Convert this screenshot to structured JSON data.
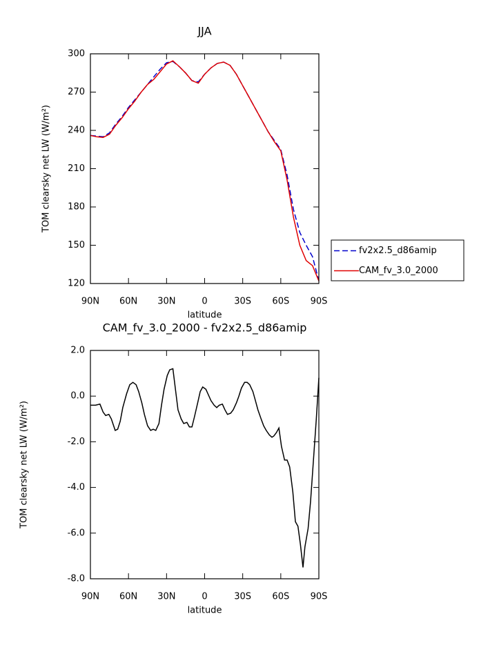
{
  "chart_data": [
    {
      "type": "line",
      "title": "JJA",
      "xlabel": "latitude",
      "ylabel": "TOM clearsky net LW (W/m²)",
      "x": [
        90,
        85,
        80,
        75,
        70,
        65,
        60,
        55,
        50,
        45,
        40,
        35,
        30,
        25,
        20,
        15,
        10,
        5,
        0,
        -5,
        -10,
        -15,
        -20,
        -25,
        -30,
        -35,
        -40,
        -45,
        -50,
        -55,
        -60,
        -65,
        -70,
        -75,
        -80,
        -85,
        -90
      ],
      "series": [
        {
          "name": "fv2x2.5_d86amip",
          "color": "#0000cc",
          "dash": true,
          "values": [
            236,
            235.5,
            235,
            238,
            245,
            251,
            258,
            264,
            270,
            276,
            282,
            288,
            293,
            294,
            290,
            285,
            279,
            278,
            284,
            289,
            292.5,
            293.5,
            291,
            284,
            275,
            266,
            257,
            248,
            239,
            232,
            225,
            205,
            178,
            160,
            150,
            141,
            122
          ]
        },
        {
          "name": "CAM_fv_3.0_2000",
          "color": "#e00000",
          "dash": false,
          "values": [
            236,
            235,
            234.5,
            237,
            244,
            250,
            257,
            263,
            270,
            276,
            280,
            286,
            292,
            294.5,
            290,
            285,
            279,
            277,
            284,
            289,
            292.5,
            293.5,
            291,
            284,
            275,
            266,
            257,
            248,
            239,
            231,
            224,
            201,
            172,
            150,
            138,
            134,
            122
          ]
        }
      ],
      "xlim": [
        90,
        -90
      ],
      "ylim": [
        120,
        300
      ],
      "xticks": [
        {
          "value": 90,
          "label": "90N"
        },
        {
          "value": 60,
          "label": "60N"
        },
        {
          "value": 30,
          "label": "30N"
        },
        0,
        {
          "value": -30,
          "label": "30S"
        },
        {
          "value": -60,
          "label": "60S"
        },
        {
          "value": -90,
          "label": "90S"
        }
      ],
      "yticks": [
        120,
        150,
        180,
        210,
        240,
        270,
        300
      ],
      "legend": "right"
    },
    {
      "type": "line",
      "title": "CAM_fv_3.0_2000 - fv2x2.5_d86amip",
      "xlabel": "latitude",
      "ylabel": "TOM clearsky net LW (W/m²)",
      "color": "#000000",
      "x": [
        90,
        86,
        82.5,
        80,
        78,
        75.5,
        73.5,
        70.5,
        68.5,
        66.5,
        64.5,
        61.5,
        59,
        56.5,
        54,
        52,
        49.5,
        47.5,
        45,
        42.5,
        40.5,
        38.5,
        36,
        34,
        32,
        29.5,
        27.5,
        25,
        23,
        21,
        18.5,
        16.5,
        14,
        12,
        10,
        8,
        5.5,
        3.5,
        1.5,
        -1,
        -3,
        -5,
        -7.5,
        -9.5,
        -11.5,
        -14,
        -16,
        -18,
        -20.5,
        -22.5,
        -25,
        -27,
        -29,
        -31.5,
        -33.5,
        -35.5,
        -38,
        -40,
        -42,
        -44.5,
        -46.5,
        -48.5,
        -51,
        -53,
        -54.5,
        -56.5,
        -58.5,
        -60.5,
        -63,
        -65,
        -67,
        -69.5,
        -71.5,
        -73.5,
        -75.5,
        -77.5,
        -79,
        -81.5,
        -83.5,
        -85.5,
        -88,
        -90
      ],
      "values": [
        -0.4,
        -0.4,
        -0.35,
        -0.7,
        -0.85,
        -0.8,
        -1.0,
        -1.5,
        -1.45,
        -1.1,
        -0.5,
        0.1,
        0.5,
        0.6,
        0.5,
        0.2,
        -0.3,
        -0.8,
        -1.3,
        -1.5,
        -1.45,
        -1.5,
        -1.2,
        -0.4,
        0.3,
        0.9,
        1.15,
        1.2,
        0.3,
        -0.6,
        -1.0,
        -1.2,
        -1.15,
        -1.35,
        -1.35,
        -0.9,
        -0.3,
        0.2,
        0.4,
        0.3,
        0.05,
        -0.2,
        -0.4,
        -0.5,
        -0.4,
        -0.35,
        -0.6,
        -0.8,
        -0.75,
        -0.6,
        -0.3,
        0.0,
        0.35,
        0.6,
        0.6,
        0.5,
        0.2,
        -0.2,
        -0.6,
        -1.0,
        -1.3,
        -1.5,
        -1.7,
        -1.8,
        -1.75,
        -1.6,
        -1.4,
        -2.2,
        -2.8,
        -2.8,
        -3.1,
        -4.2,
        -5.5,
        -5.7,
        -6.5,
        -7.5,
        -6.6,
        -5.8,
        -4.6,
        -3.0,
        -1.0,
        0.8
      ],
      "xlim": [
        90,
        -90
      ],
      "ylim": [
        -8,
        2
      ],
      "xticks": [
        {
          "value": 90,
          "label": "90N"
        },
        {
          "value": 60,
          "label": "60N"
        },
        {
          "value": 30,
          "label": "30N"
        },
        0,
        {
          "value": -30,
          "label": "30S"
        },
        {
          "value": -60,
          "label": "60S"
        },
        {
          "value": -90,
          "label": "90S"
        }
      ],
      "yticks": [
        {
          "value": -8,
          "label": "-8.0"
        },
        {
          "value": -6,
          "label": "-6.0"
        },
        {
          "value": -4,
          "label": "-4.0"
        },
        {
          "value": -2,
          "label": "-2.0"
        },
        {
          "value": 0,
          "label": "0.0"
        },
        {
          "value": 2,
          "label": "2.0"
        }
      ]
    }
  ]
}
